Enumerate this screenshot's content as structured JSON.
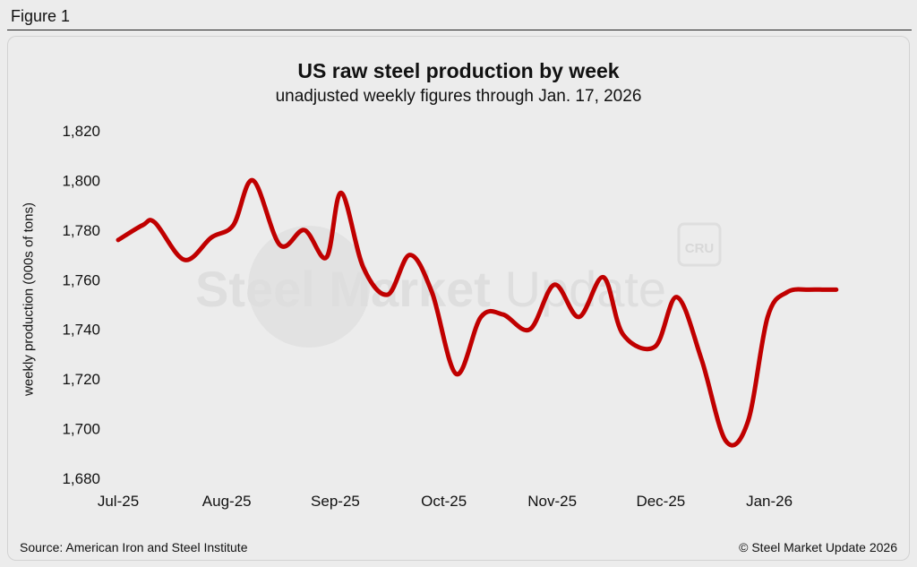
{
  "figure_label": "Figure 1",
  "watermark": {
    "brand_bold": "Steel Market",
    "brand_light": " Update",
    "badge": "CRU"
  },
  "source": "Source: American Iron and Steel Institute",
  "copyright": "© Steel Market Update 2026",
  "colors": {
    "line": "#c00000",
    "background": "#ececec",
    "text": "#111111"
  },
  "chart_data": {
    "type": "line",
    "title": "US raw steel production by week",
    "subtitle": "unadjusted weekly figures through Jan. 17, 2026",
    "xlabel": "",
    "ylabel": "weekly production (000s of tons)",
    "ylim": [
      1680,
      1820
    ],
    "yticks": [
      1680,
      1700,
      1720,
      1740,
      1760,
      1780,
      1800,
      1820
    ],
    "ytick_labels": [
      "1,680",
      "1,700",
      "1,720",
      "1,740",
      "1,760",
      "1,780",
      "1,800",
      "1,820"
    ],
    "xlim": [
      0,
      29.6
    ],
    "xtick_positions": [
      0,
      4.43,
      8.86,
      13.29,
      17.71,
      22.14,
      26.57
    ],
    "xtick_labels": [
      "Jul-25",
      "Aug-25",
      "Sep-25",
      "Oct-25",
      "Nov-25",
      "Dec-25",
      "Jan-26"
    ],
    "grid": false,
    "series": [
      {
        "name": "weekly production",
        "x": [
          0,
          1,
          1.5,
          2.7,
          3.8,
          4.7,
          5.5,
          6.6,
          7.6,
          8.5,
          9.1,
          10.0,
          11.0,
          11.9,
          12.8,
          13.8,
          14.8,
          15.7,
          16.8,
          17.8,
          18.8,
          19.8,
          20.6,
          21.9,
          22.8,
          23.8,
          24.8,
          25.7,
          26.5,
          27.3,
          28.2,
          28.8,
          29.3
        ],
        "values": [
          1776,
          1782,
          1783,
          1768,
          1777,
          1782,
          1800,
          1774,
          1780,
          1769,
          1795,
          1765,
          1754,
          1770,
          1755,
          1722,
          1745,
          1746,
          1740,
          1758,
          1745,
          1761,
          1738,
          1733,
          1753,
          1728,
          1695,
          1703,
          1745,
          1755,
          1756,
          1756,
          1756
        ]
      }
    ]
  }
}
